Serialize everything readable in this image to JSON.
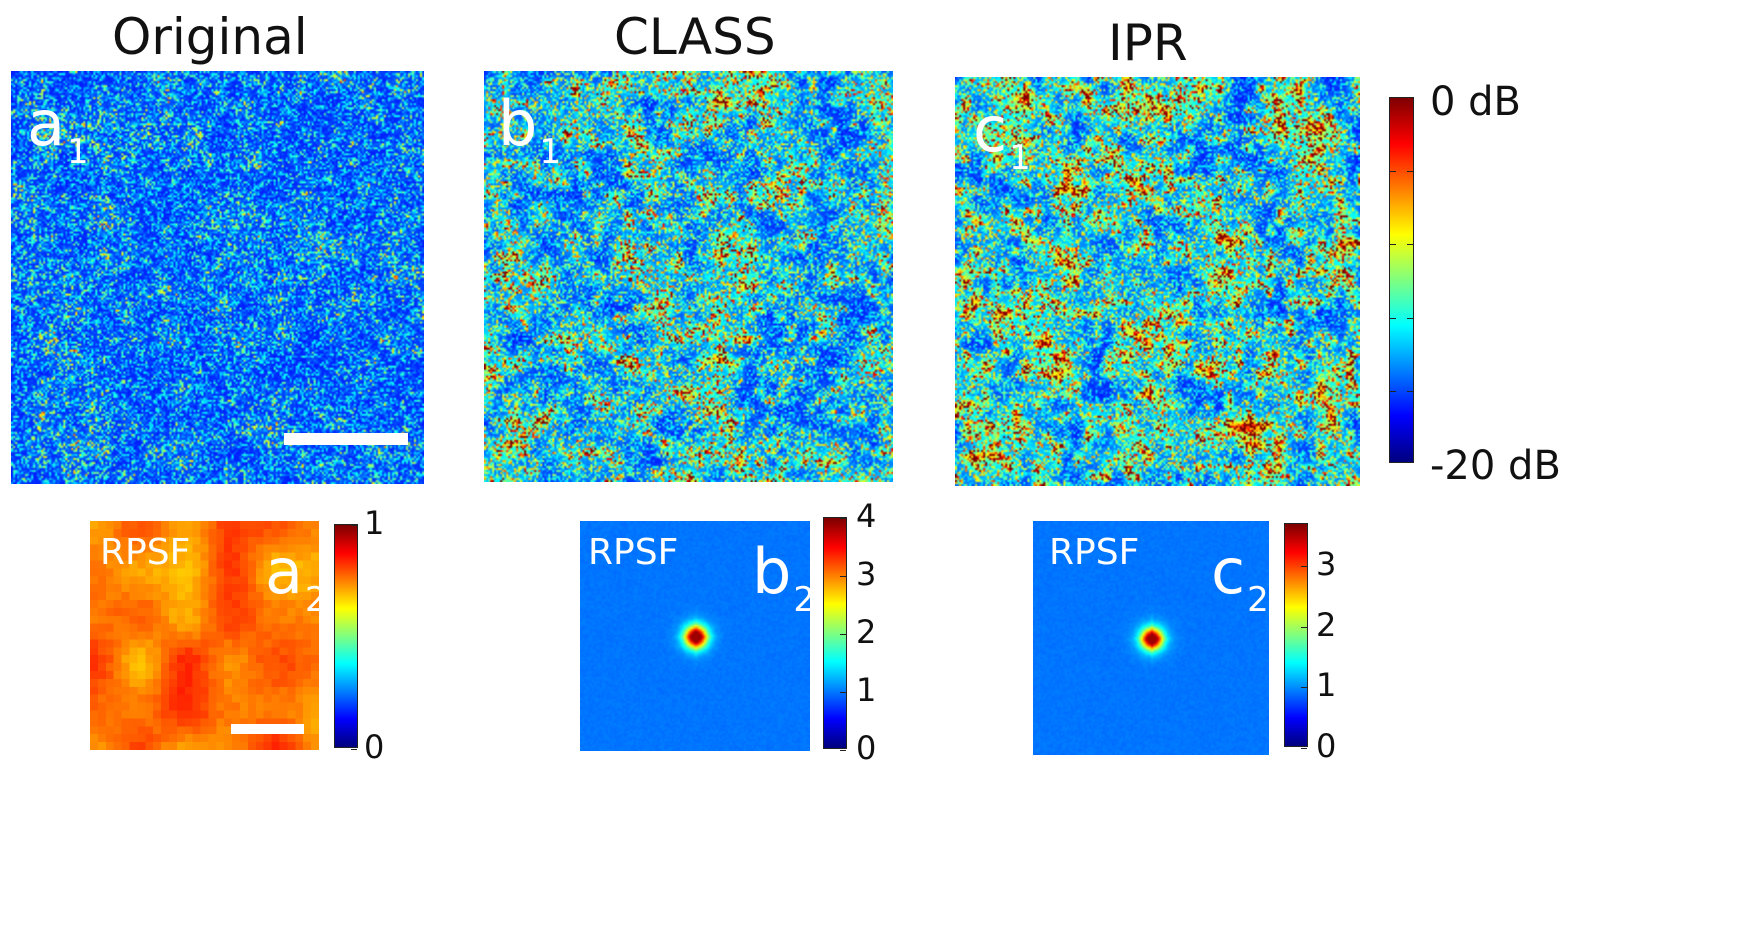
{
  "columns": [
    {
      "title": "Original",
      "panel_letter": "a",
      "main_sub": "1",
      "rpsf_sub": "2"
    },
    {
      "title": "CLASS",
      "panel_letter": "b",
      "main_sub": "1",
      "rpsf_sub": "2"
    },
    {
      "title": "IPR",
      "panel_letter": "c",
      "main_sub": "1",
      "rpsf_sub": "2"
    }
  ],
  "rpsf_label": "RPSF",
  "main_colorbar": {
    "max_label": "0 dB",
    "min_label": "-20 dB"
  },
  "rpsf_colorbars": [
    {
      "ticks": [
        "1",
        "0"
      ],
      "values": [
        1,
        0
      ]
    },
    {
      "ticks": [
        "4",
        "3",
        "2",
        "1",
        "0"
      ],
      "values": [
        4,
        3,
        2,
        1,
        0
      ]
    },
    {
      "ticks": [
        "3",
        "2",
        "1",
        "0"
      ],
      "values": [
        3,
        2,
        1,
        0
      ]
    }
  ],
  "colormap": "jet"
}
